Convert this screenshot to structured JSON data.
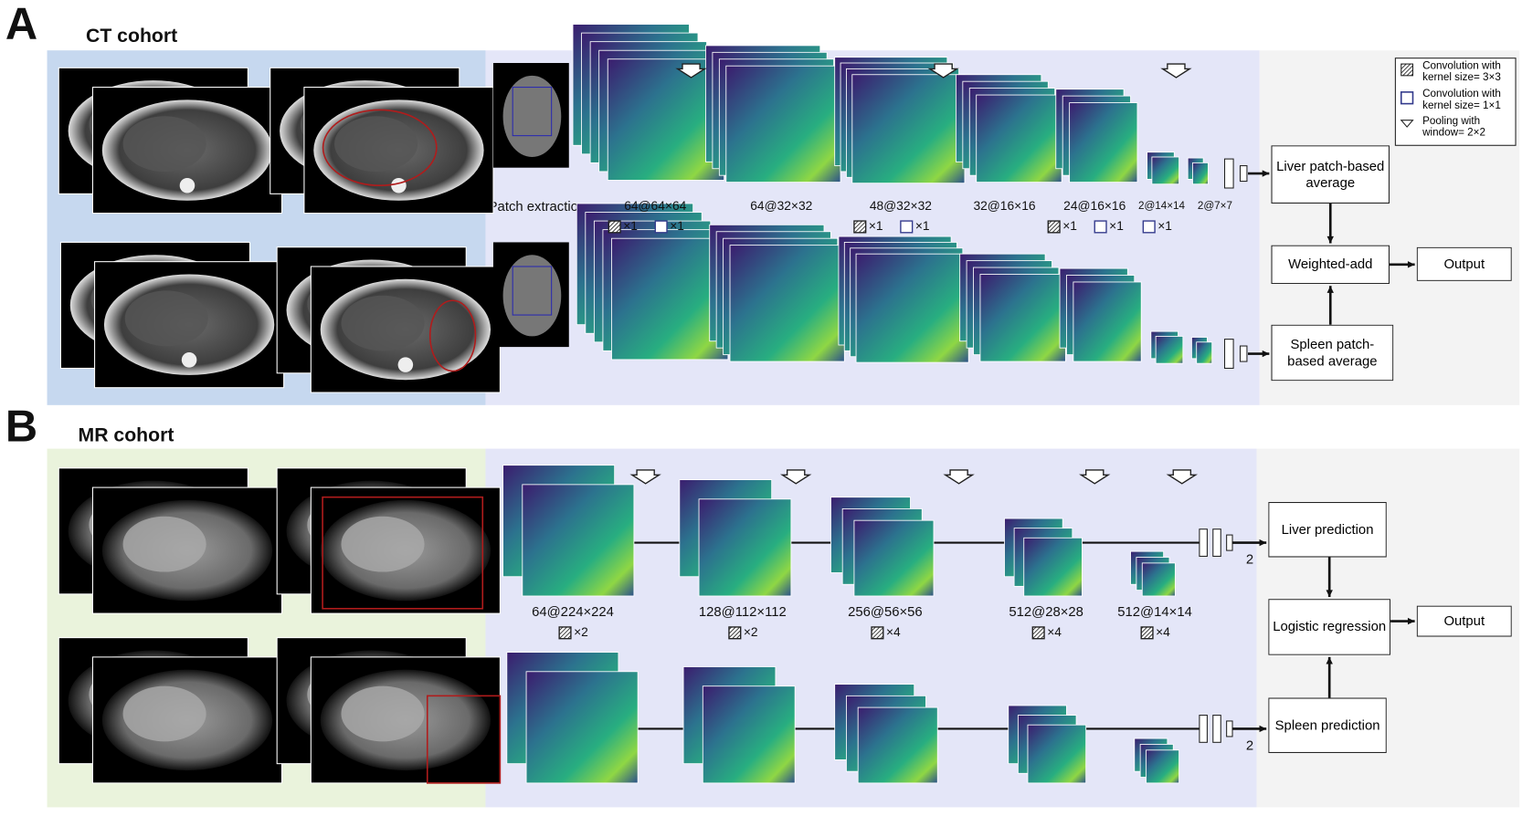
{
  "legend": {
    "conv3x3": "Convolution with kernel size= 3×3",
    "conv1x1": "Convolution with kernel size= 1×1",
    "pool": "Pooling with window= 2×2"
  },
  "panel_a": {
    "label": "A",
    "title": "CT cohort",
    "patch_label": "Patch extraction",
    "layers": [
      {
        "size": "64@64×64",
        "ops": {
          "conv3x3": "×1",
          "conv1x1": "×1"
        }
      },
      {
        "size": "64@32×32"
      },
      {
        "size": "48@32×32",
        "ops": {
          "conv3x3": "×1",
          "conv1x1": "×1"
        }
      },
      {
        "size": "32@16×16"
      },
      {
        "size": "24@16×16",
        "ops": {
          "conv3x3": "×1",
          "conv1x1": "×1"
        }
      },
      {
        "size": "2@14×14",
        "ops": {
          "conv1x1": "×1"
        }
      },
      {
        "size": "2@7×7"
      }
    ],
    "boxes": {
      "liver": "Liver patch-based average",
      "combine": "Weighted-add",
      "output": "Output",
      "spleen": "Spleen patch-based average"
    }
  },
  "panel_b": {
    "label": "B",
    "title": "MR cohort",
    "layers": [
      {
        "size": "64@224×224",
        "ops": {
          "conv3x3": "×2"
        }
      },
      {
        "size": "128@112×112",
        "ops": {
          "conv3x3": "×2"
        }
      },
      {
        "size": "256@56×56",
        "ops": {
          "conv3x3": "×4"
        }
      },
      {
        "size": "512@28×28",
        "ops": {
          "conv3x3": "×4"
        }
      },
      {
        "size": "512@14×14",
        "ops": {
          "conv3x3": "×4"
        }
      }
    ],
    "outputs": [
      "2",
      "2"
    ],
    "boxes": {
      "liver": "Liver prediction",
      "combine": "Logistic regression",
      "output": "Output",
      "spleen": "Spleen prediction"
    }
  }
}
